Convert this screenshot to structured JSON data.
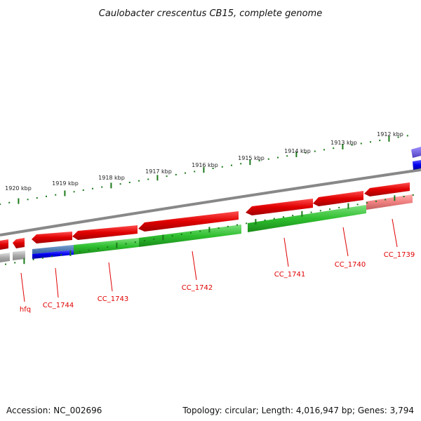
{
  "title": "Caulobacter crescentus CB15, complete genome",
  "accession": "Accession: NC_002696",
  "summary": "Topology: circular; Length: 4,016,947 bp; Genes: 3,794",
  "colors": {
    "reverse_cds": "#e00000",
    "forward_cds": "#2fbf2f",
    "rna": "#0000ee",
    "pseudo": "#aaaaaa",
    "label": "#e00000",
    "tick": "#1a7a1a",
    "backbone": "#888888"
  },
  "scale_ticks": [
    "1912 kbp",
    "1913 kbp",
    "1914 kbp",
    "1915 kbp",
    "1916 kbp",
    "1917 kbp",
    "1918 kbp",
    "1919 kbp",
    "1920 kbp"
  ],
  "gene_labels": [
    "hfq",
    "CC_1744",
    "CC_1743",
    "CC_1742",
    "CC_1741",
    "CC_1740",
    "CC_1739"
  ]
}
